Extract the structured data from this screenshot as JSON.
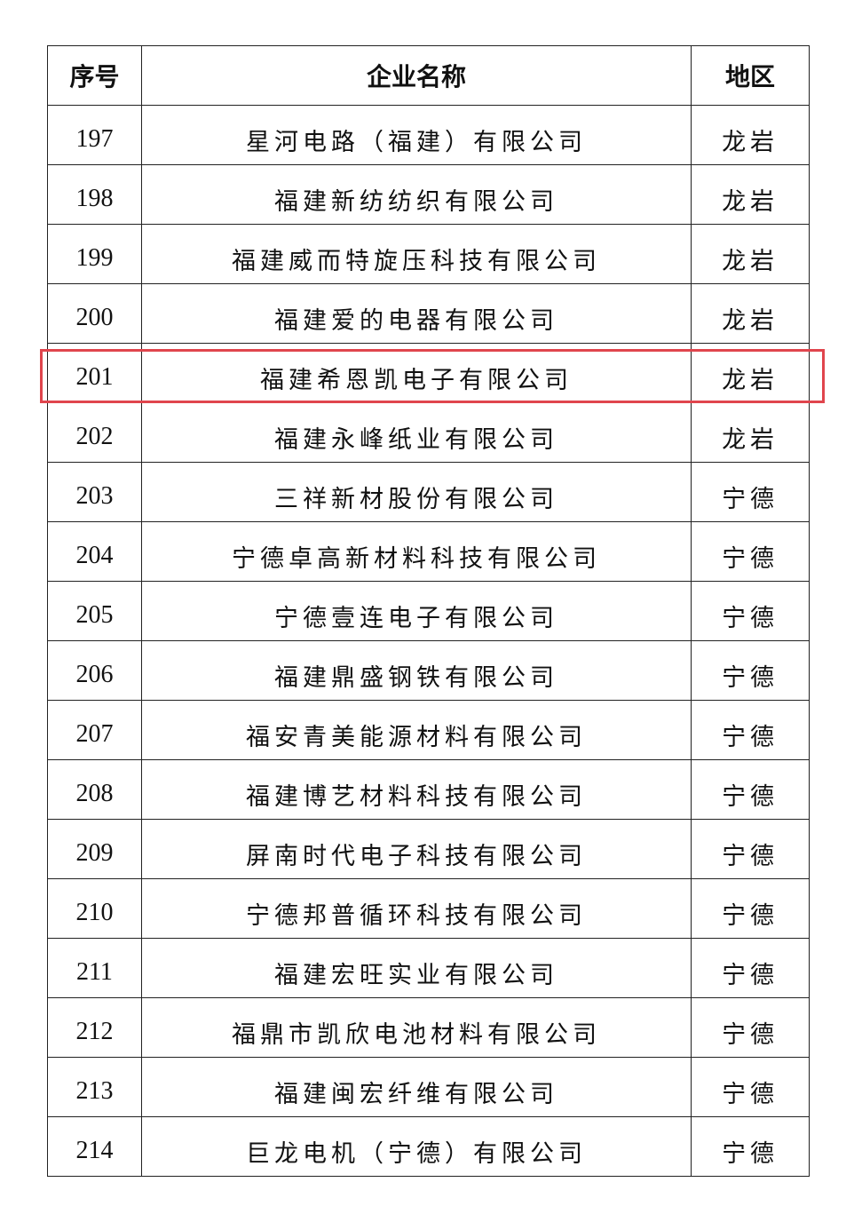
{
  "headers": {
    "no": "序号",
    "name": "企业名称",
    "region": "地区"
  },
  "rows": [
    {
      "no": "197",
      "name": "星河电路（福建）有限公司",
      "region": "龙岩"
    },
    {
      "no": "198",
      "name": "福建新纺纺织有限公司",
      "region": "龙岩"
    },
    {
      "no": "199",
      "name": "福建威而特旋压科技有限公司",
      "region": "龙岩"
    },
    {
      "no": "200",
      "name": "福建爱的电器有限公司",
      "region": "龙岩"
    },
    {
      "no": "201",
      "name": "福建希恩凯电子有限公司",
      "region": "龙岩"
    },
    {
      "no": "202",
      "name": "福建永峰纸业有限公司",
      "region": "龙岩"
    },
    {
      "no": "203",
      "name": "三祥新材股份有限公司",
      "region": "宁德"
    },
    {
      "no": "204",
      "name": "宁德卓高新材料科技有限公司",
      "region": "宁德"
    },
    {
      "no": "205",
      "name": "宁德壹连电子有限公司",
      "region": "宁德"
    },
    {
      "no": "206",
      "name": "福建鼎盛钢铁有限公司",
      "region": "宁德"
    },
    {
      "no": "207",
      "name": "福安青美能源材料有限公司",
      "region": "宁德"
    },
    {
      "no": "208",
      "name": "福建博艺材料科技有限公司",
      "region": "宁德"
    },
    {
      "no": "209",
      "name": "屏南时代电子科技有限公司",
      "region": "宁德"
    },
    {
      "no": "210",
      "name": "宁德邦普循环科技有限公司",
      "region": "宁德"
    },
    {
      "no": "211",
      "name": "福建宏旺实业有限公司",
      "region": "宁德"
    },
    {
      "no": "212",
      "name": "福鼎市凯欣电池材料有限公司",
      "region": "宁德"
    },
    {
      "no": "213",
      "name": "福建闽宏纤维有限公司",
      "region": "宁德"
    },
    {
      "no": "214",
      "name": "巨龙电机（宁德）有限公司",
      "region": "宁德"
    }
  ],
  "highlight": {
    "row_no": "201",
    "color": "#e0454d"
  }
}
